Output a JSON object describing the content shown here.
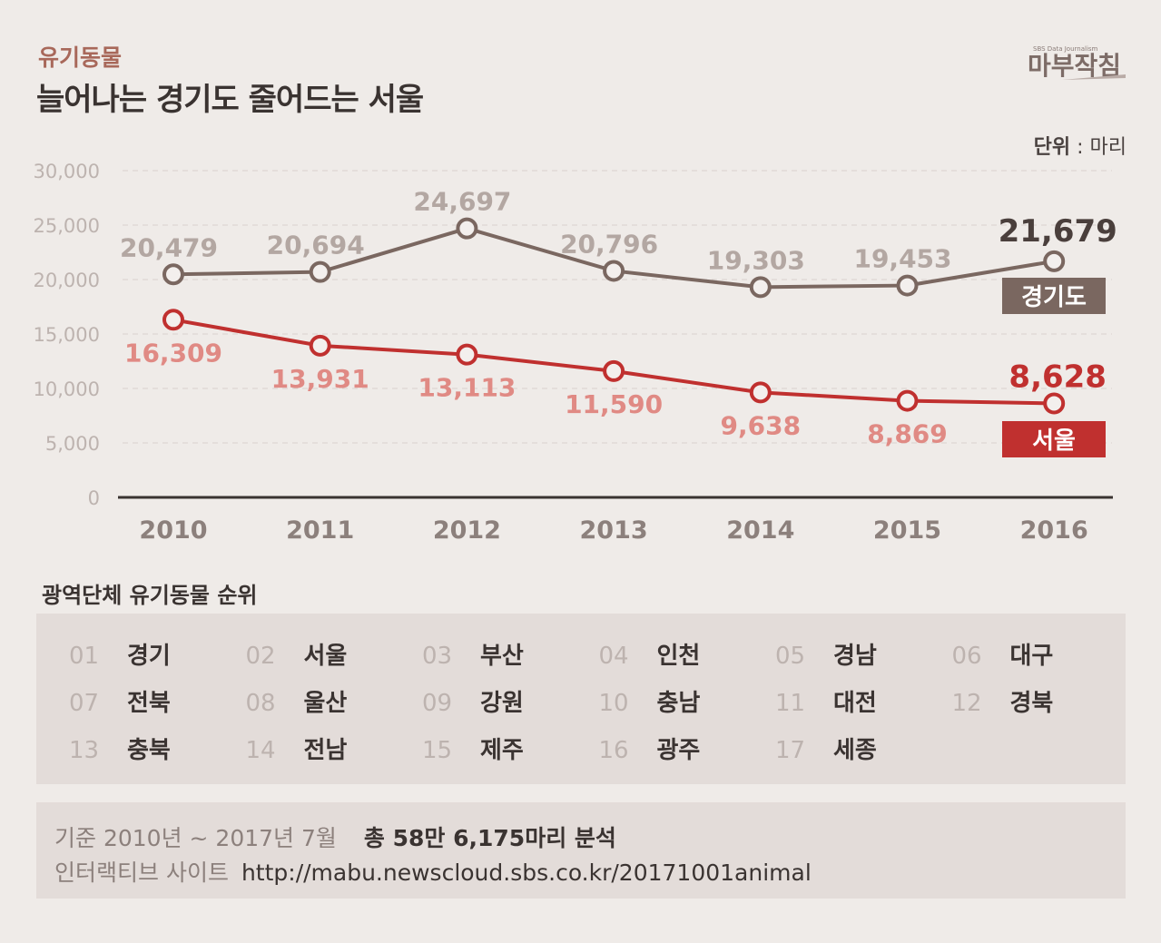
{
  "header": {
    "kicker": "유기동물",
    "title": "늘어나는 경기도 줄어드는 서울",
    "logo_text": "마부작침",
    "logo_subtext": "SBS Data Journalism"
  },
  "unit": {
    "label": "단위",
    "value": ": 마리"
  },
  "chart_data": {
    "type": "line",
    "categories": [
      "2010",
      "2011",
      "2012",
      "2013",
      "2014",
      "2015",
      "2016"
    ],
    "ylim": [
      0,
      30000
    ],
    "yticks": [
      "0",
      "5,000",
      "10,000",
      "15,000",
      "20,000",
      "25,000",
      "30,000"
    ],
    "ytick_values": [
      0,
      5000,
      10000,
      15000,
      20000,
      25000,
      30000
    ],
    "grid": true,
    "series": [
      {
        "name": "경기도",
        "color": "#7a6760",
        "label_color": "#b3a7a2",
        "values": [
          20479,
          20694,
          24697,
          20796,
          19303,
          19453,
          21679
        ],
        "labels": [
          "20,479",
          "20,694",
          "24,697",
          "20,796",
          "19,303",
          "19,453",
          "21,679"
        ]
      },
      {
        "name": "서울",
        "color": "#c0302f",
        "label_color": "#e08a84",
        "values": [
          16309,
          13931,
          13113,
          11590,
          9638,
          8869,
          8628
        ],
        "labels": [
          "16,309",
          "13,931",
          "13,113",
          "11,590",
          "9,638",
          "8,869",
          "8,628"
        ]
      }
    ]
  },
  "ranking": {
    "title": "광역단체 유기동물 순위",
    "items": [
      {
        "num": "01",
        "name": "경기"
      },
      {
        "num": "02",
        "name": "서울"
      },
      {
        "num": "03",
        "name": "부산"
      },
      {
        "num": "04",
        "name": "인천"
      },
      {
        "num": "05",
        "name": "경남"
      },
      {
        "num": "06",
        "name": "대구"
      },
      {
        "num": "07",
        "name": "전북"
      },
      {
        "num": "08",
        "name": "울산"
      },
      {
        "num": "09",
        "name": "강원"
      },
      {
        "num": "10",
        "name": "충남"
      },
      {
        "num": "11",
        "name": "대전"
      },
      {
        "num": "12",
        "name": "경북"
      },
      {
        "num": "13",
        "name": "충북"
      },
      {
        "num": "14",
        "name": "전남"
      },
      {
        "num": "15",
        "name": "제주"
      },
      {
        "num": "16",
        "name": "광주"
      },
      {
        "num": "17",
        "name": "세종"
      }
    ]
  },
  "footer": {
    "basis_label": "기준",
    "basis_value": "2010년 ~ 2017년 7월",
    "total": "총 58만 6,175마리 분석",
    "site_label": "인터랙티브 사이트",
    "url": "http://mabu.newscloud.sbs.co.kr/20171001animal"
  }
}
